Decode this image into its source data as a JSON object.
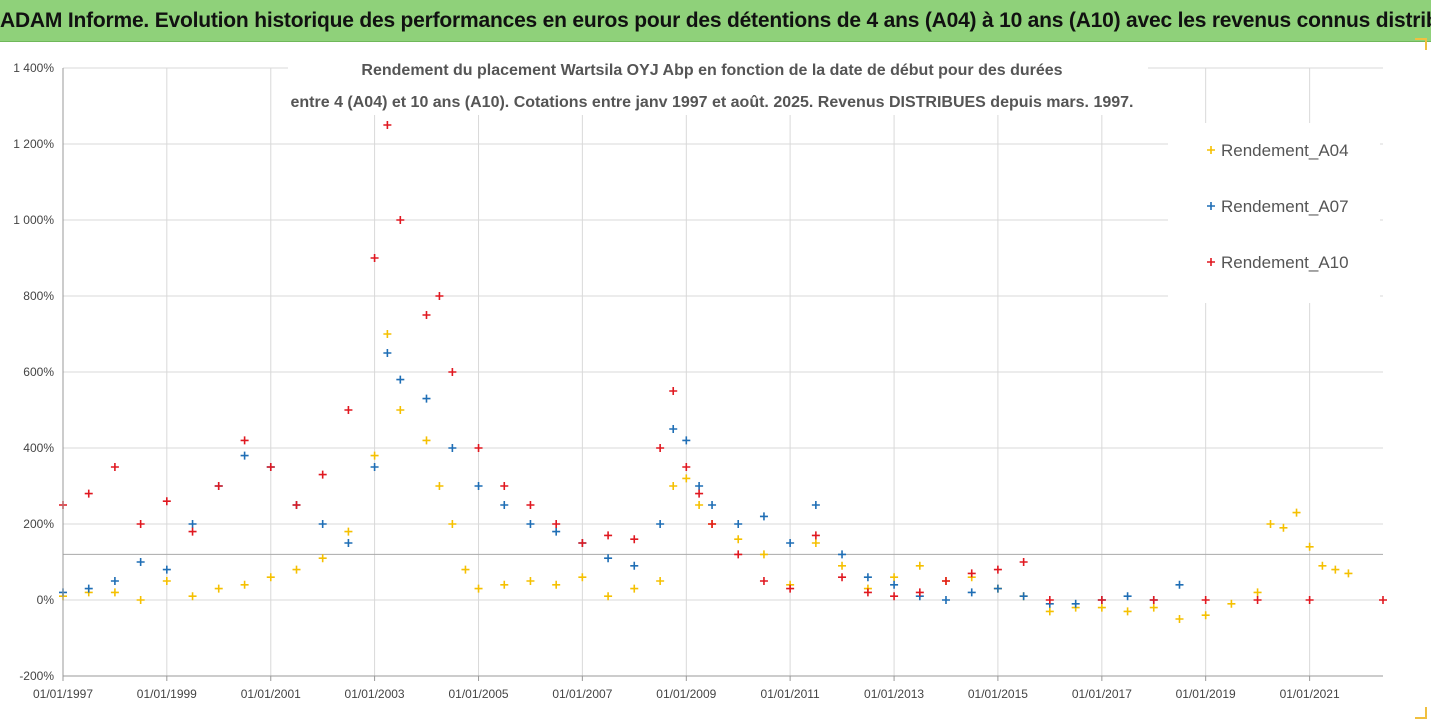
{
  "banner": {
    "text": "ADAM Informe. Evolution historique des performances en euros pour des détentions de 4 ans (A04) à 10 ans (A10) avec les revenus connus distribués"
  },
  "chart_data": {
    "type": "scatter",
    "title_line1": "Rendement du placement Wartsila OYJ Abp en fonction de la date de début pour des durées",
    "title_line2": "entre 4 (A04) et 10 ans (A10). Cotations entre janv 1997 et août. 2025. Revenus DISTRIBUES depuis mars. 1997.",
    "xlabel": "",
    "ylabel": "",
    "x_range": [
      "1997-01-01",
      "2022-06-01"
    ],
    "x_ticks": [
      "01/01/1997",
      "01/01/1999",
      "01/01/2001",
      "01/01/2003",
      "01/01/2005",
      "01/01/2007",
      "01/01/2009",
      "01/01/2011",
      "01/01/2013",
      "01/01/2015",
      "01/01/2017",
      "01/01/2019",
      "01/01/2021"
    ],
    "y_range": [
      -200,
      1400
    ],
    "y_ticks": [
      {
        "value": -200,
        "label": "-200%"
      },
      {
        "value": 0,
        "label": "0%"
      },
      {
        "value": 200,
        "label": "200%"
      },
      {
        "value": 400,
        "label": "400%"
      },
      {
        "value": 600,
        "label": "600%"
      },
      {
        "value": 800,
        "label": "800%"
      },
      {
        "value": 1000,
        "label": "1 000%"
      },
      {
        "value": 1200,
        "label": "1 200%"
      },
      {
        "value": 1400,
        "label": "1 400%"
      }
    ],
    "reference_line_y": 120,
    "legend_position": "right",
    "series": [
      {
        "name": "Rendement_A04",
        "color": "#f5c000",
        "x": [
          "1997-01-01",
          "1997-07-01",
          "1998-01-01",
          "1998-07-01",
          "1999-01-01",
          "1999-07-01",
          "2000-01-01",
          "2000-07-01",
          "2001-01-01",
          "2001-07-01",
          "2002-01-01",
          "2002-07-01",
          "2003-01-01",
          "2003-04-01",
          "2003-07-01",
          "2004-01-01",
          "2004-04-01",
          "2004-07-01",
          "2004-10-01",
          "2005-01-01",
          "2005-07-01",
          "2006-01-01",
          "2006-07-01",
          "2007-01-01",
          "2007-07-01",
          "2008-01-01",
          "2008-07-01",
          "2008-10-01",
          "2009-01-01",
          "2009-04-01",
          "2009-07-01",
          "2010-01-01",
          "2010-07-01",
          "2011-01-01",
          "2011-07-01",
          "2012-01-01",
          "2012-07-01",
          "2013-01-01",
          "2013-07-01",
          "2014-01-01",
          "2014-07-01",
          "2015-01-01",
          "2015-07-01",
          "2016-01-01",
          "2016-07-01",
          "2017-01-01",
          "2017-07-01",
          "2018-01-01",
          "2018-07-01",
          "2019-01-01",
          "2019-07-01",
          "2020-01-01",
          "2020-04-01",
          "2020-07-01",
          "2020-10-01",
          "2021-01-01",
          "2021-04-01",
          "2021-07-01",
          "2021-10-01"
        ],
        "values": [
          10,
          20,
          20,
          0,
          50,
          10,
          30,
          40,
          60,
          80,
          110,
          180,
          380,
          700,
          500,
          420,
          300,
          200,
          80,
          30,
          40,
          50,
          40,
          60,
          10,
          30,
          50,
          300,
          320,
          250,
          200,
          160,
          120,
          40,
          150,
          90,
          30,
          60,
          90,
          50,
          60,
          30,
          10,
          -30,
          -20,
          -20,
          -30,
          -20,
          -50,
          -40,
          -10,
          20,
          200,
          190,
          230,
          140,
          90,
          80,
          70
        ]
      },
      {
        "name": "Rendement_A07",
        "color": "#1f6eb5",
        "x": [
          "1997-01-01",
          "1997-07-01",
          "1998-01-01",
          "1998-07-01",
          "1999-01-01",
          "1999-07-01",
          "2000-01-01",
          "2000-07-01",
          "2001-01-01",
          "2001-07-01",
          "2002-01-01",
          "2002-07-01",
          "2003-01-01",
          "2003-04-01",
          "2003-07-01",
          "2004-01-01",
          "2004-07-01",
          "2005-01-01",
          "2005-07-01",
          "2006-01-01",
          "2006-07-01",
          "2007-01-01",
          "2007-07-01",
          "2008-01-01",
          "2008-07-01",
          "2008-10-01",
          "2009-01-01",
          "2009-04-01",
          "2009-07-01",
          "2010-01-01",
          "2010-07-01",
          "2011-01-01",
          "2011-07-01",
          "2012-01-01",
          "2012-07-01",
          "2013-01-01",
          "2013-07-01",
          "2014-01-01",
          "2014-07-01",
          "2015-01-01",
          "2015-07-01",
          "2016-01-01",
          "2016-07-01",
          "2017-01-01",
          "2017-07-01",
          "2018-01-01",
          "2018-07-01"
        ],
        "values": [
          20,
          30,
          50,
          100,
          80,
          200,
          300,
          380,
          350,
          250,
          200,
          150,
          350,
          650,
          580,
          530,
          400,
          300,
          250,
          200,
          180,
          150,
          110,
          90,
          200,
          450,
          420,
          300,
          250,
          200,
          220,
          150,
          250,
          120,
          60,
          40,
          10,
          0,
          20,
          30,
          10,
          -10,
          -10,
          0,
          10,
          0,
          40
        ]
      },
      {
        "name": "Rendement_A10",
        "color": "#e01820",
        "x": [
          "1997-01-01",
          "1997-07-01",
          "1998-01-01",
          "1998-07-01",
          "1999-01-01",
          "1999-07-01",
          "2000-01-01",
          "2000-07-01",
          "2001-01-01",
          "2001-07-01",
          "2002-01-01",
          "2002-07-01",
          "2003-01-01",
          "2003-04-01",
          "2003-07-01",
          "2004-01-01",
          "2004-04-01",
          "2004-07-01",
          "2005-01-01",
          "2005-07-01",
          "2006-01-01",
          "2006-07-01",
          "2007-01-01",
          "2007-07-01",
          "2008-01-01",
          "2008-07-01",
          "2008-10-01",
          "2009-01-01",
          "2009-04-01",
          "2009-07-01",
          "2010-01-01",
          "2010-07-01",
          "2011-01-01",
          "2011-07-01",
          "2012-01-01",
          "2012-07-01",
          "2013-01-01",
          "2013-07-01",
          "2014-01-01",
          "2014-07-01",
          "2015-01-01",
          "2015-07-01",
          "2016-01-01",
          "2017-01-01",
          "2018-01-01",
          "2019-01-01",
          "2020-01-01",
          "2021-01-01",
          "2022-06-01"
        ],
        "values": [
          250,
          280,
          350,
          200,
          260,
          180,
          300,
          420,
          350,
          250,
          330,
          500,
          900,
          1250,
          1000,
          750,
          800,
          600,
          400,
          300,
          250,
          200,
          150,
          170,
          160,
          400,
          550,
          350,
          280,
          200,
          120,
          50,
          30,
          170,
          60,
          20,
          10,
          20,
          50,
          70,
          80,
          100,
          0,
          0,
          0,
          0,
          0,
          0,
          0
        ]
      }
    ]
  }
}
